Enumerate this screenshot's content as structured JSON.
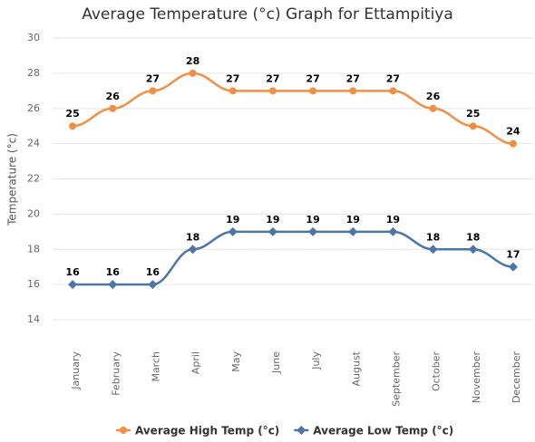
{
  "chart_data": {
    "type": "line",
    "title": "Average Temperature (°c) Graph for Ettampitiya",
    "y_label": "Temperature (°c)",
    "categories": [
      "January",
      "February",
      "March",
      "April",
      "May",
      "June",
      "July",
      "August",
      "September",
      "October",
      "November",
      "December"
    ],
    "series": [
      {
        "name": "Average High Temp (°c)",
        "color": "#f28f43",
        "values": [
          25,
          26,
          27,
          28,
          27,
          27,
          27,
          27,
          27,
          26,
          25,
          24
        ]
      },
      {
        "name": "Average Low Temp (°c)",
        "color": "#4a76a8",
        "values": [
          16,
          16,
          16,
          18,
          19,
          19,
          19,
          19,
          19,
          18,
          18,
          17
        ]
      }
    ],
    "ylim": [
      14,
      30
    ],
    "yticks": [
      14,
      16,
      18,
      20,
      22,
      24,
      26,
      28,
      30
    ],
    "grid": true
  }
}
